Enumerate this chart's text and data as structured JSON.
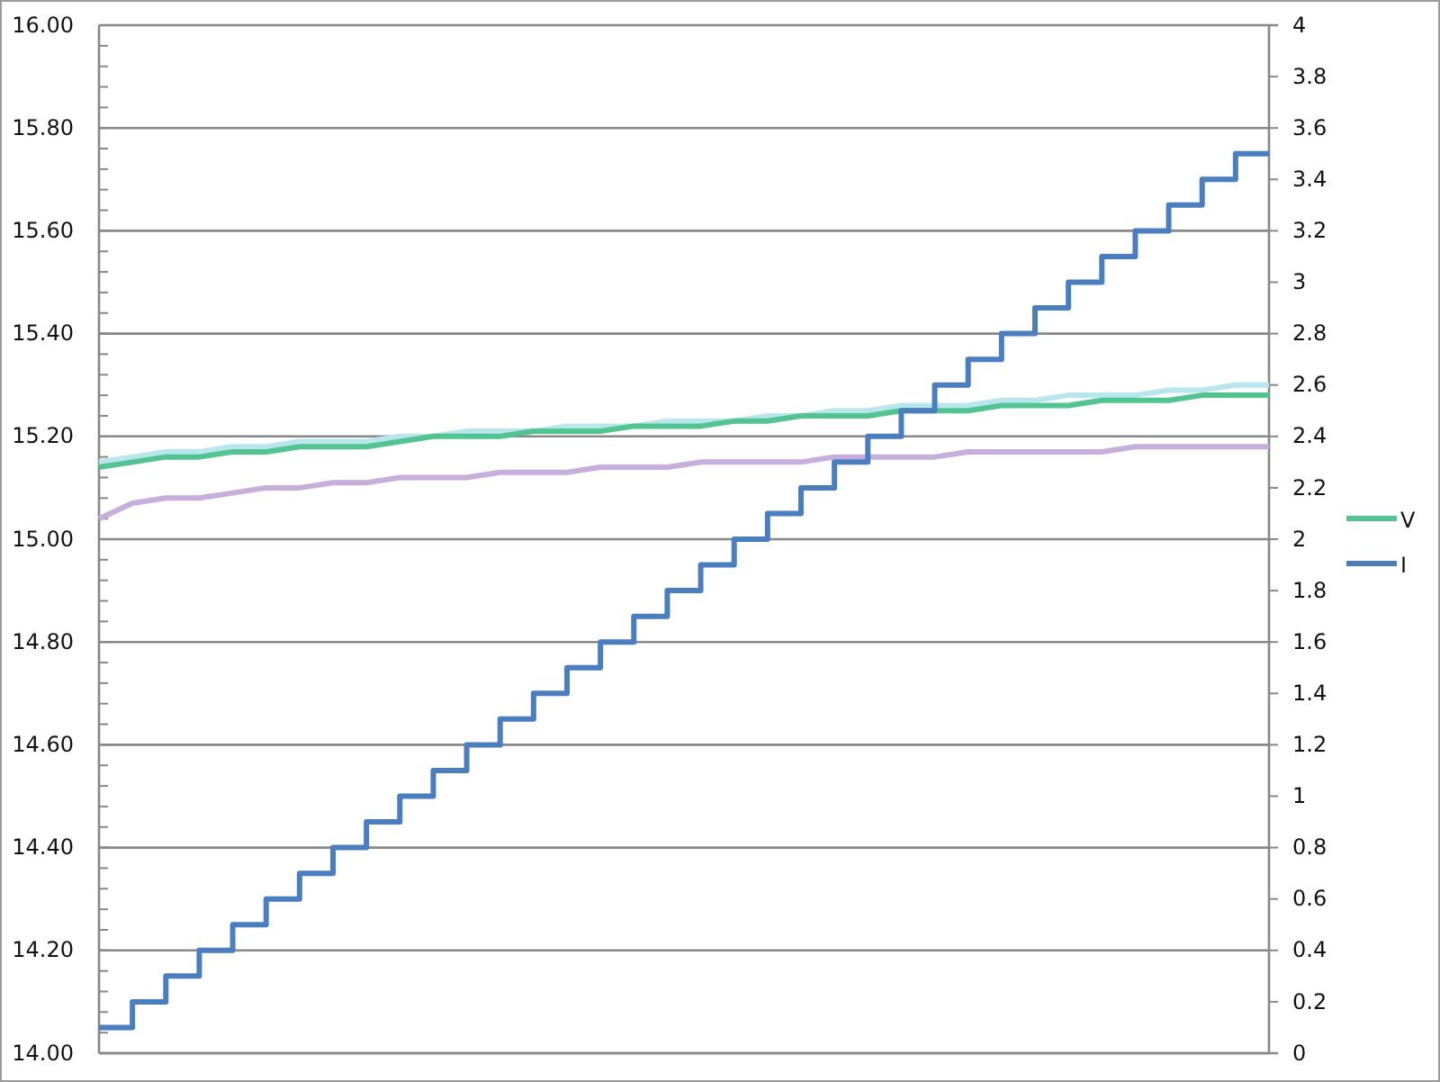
{
  "chart_data": {
    "type": "line",
    "categories": [
      null,
      null,
      null,
      null,
      null,
      null,
      null,
      null,
      null,
      null,
      null,
      null,
      null,
      null,
      null,
      null,
      null,
      null,
      null,
      null,
      null,
      null,
      null,
      null,
      null,
      null,
      null,
      null,
      null,
      null,
      null,
      null,
      null,
      null,
      null,
      null
    ],
    "series": [
      {
        "color": "#b8e6ef",
        "values": [
          15.15,
          15.16,
          15.17,
          15.17,
          15.18,
          15.18,
          15.19,
          15.19,
          15.19,
          15.2,
          15.2,
          15.21,
          15.21,
          15.21,
          15.22,
          15.22,
          15.22,
          15.23,
          15.23,
          15.23,
          15.24,
          15.24,
          15.25,
          15.25,
          15.26,
          15.26,
          15.26,
          15.27,
          15.27,
          15.28,
          15.28,
          15.28,
          15.29,
          15.29,
          15.3,
          15.3
        ]
      },
      {
        "color": "#c6aedd",
        "values": [
          15.04,
          15.07,
          15.08,
          15.08,
          15.09,
          15.1,
          15.1,
          15.11,
          15.11,
          15.12,
          15.12,
          15.12,
          15.13,
          15.13,
          15.13,
          15.14,
          15.14,
          15.14,
          15.15,
          15.15,
          15.15,
          15.15,
          15.16,
          15.16,
          15.16,
          15.16,
          15.17,
          15.17,
          15.17,
          15.17,
          15.17,
          15.18,
          15.18,
          15.18,
          15.18,
          15.18
        ]
      },
      {
        "name": "V",
        "color": "#52c490",
        "values": [
          15.14,
          15.15,
          15.16,
          15.16,
          15.17,
          15.17,
          15.18,
          15.18,
          15.18,
          15.19,
          15.2,
          15.2,
          15.2,
          15.21,
          15.21,
          15.21,
          15.22,
          15.22,
          15.22,
          15.23,
          15.23,
          15.24,
          15.24,
          15.24,
          15.25,
          15.25,
          15.25,
          15.26,
          15.26,
          15.26,
          15.27,
          15.27,
          15.27,
          15.28,
          15.28,
          15.28
        ]
      },
      {
        "name": "I",
        "type": "step",
        "axis": "y2",
        "color": "#4a7ebf",
        "values": [
          0.1,
          0.2,
          0.3,
          0.4,
          0.5,
          0.6,
          0.7,
          0.8,
          0.9,
          1.0,
          1.1,
          1.2,
          1.3,
          1.4,
          1.5,
          1.6,
          1.7,
          1.8,
          1.9,
          2.0,
          2.1,
          2.2,
          2.3,
          2.4,
          2.5,
          2.6,
          2.7,
          2.8,
          2.9,
          3.0,
          3.1,
          3.2,
          3.3,
          3.4,
          3.5,
          3.5
        ]
      }
    ],
    "ylim": [
      14,
      16
    ],
    "yticks": [
      {
        "value": 14,
        "label": "14.00"
      },
      {
        "value": 14.04,
        "label": null
      },
      {
        "value": 14.08,
        "label": null
      },
      {
        "value": 14.12,
        "label": null
      },
      {
        "value": 14.16,
        "label": null
      },
      {
        "value": 14.2,
        "label": "14.20"
      },
      {
        "value": 14.24,
        "label": null
      },
      {
        "value": 14.28,
        "label": null
      },
      {
        "value": 14.32,
        "label": null
      },
      {
        "value": 14.36,
        "label": null
      },
      {
        "value": 14.4,
        "label": "14.40"
      },
      {
        "value": 14.44,
        "label": null
      },
      {
        "value": 14.48,
        "label": null
      },
      {
        "value": 14.52,
        "label": null
      },
      {
        "value": 14.56,
        "label": null
      },
      {
        "value": 14.6,
        "label": "14.60"
      },
      {
        "value": 14.64,
        "label": null
      },
      {
        "value": 14.68,
        "label": null
      },
      {
        "value": 14.72,
        "label": null
      },
      {
        "value": 14.76,
        "label": null
      },
      {
        "value": 14.8,
        "label": "14.80"
      },
      {
        "value": 14.84,
        "label": null
      },
      {
        "value": 14.88,
        "label": null
      },
      {
        "value": 14.92,
        "label": null
      },
      {
        "value": 14.96,
        "label": null
      },
      {
        "value": 15,
        "label": "15.00"
      },
      {
        "value": 15.04,
        "label": null
      },
      {
        "value": 15.08,
        "label": null
      },
      {
        "value": 15.12,
        "label": null
      },
      {
        "value": 15.16,
        "label": null
      },
      {
        "value": 15.2,
        "label": "15.20"
      },
      {
        "value": 15.24,
        "label": null
      },
      {
        "value": 15.28,
        "label": null
      },
      {
        "value": 15.32,
        "label": null
      },
      {
        "value": 15.36,
        "label": null
      },
      {
        "value": 15.4,
        "label": "15.40"
      },
      {
        "value": 15.44,
        "label": null
      },
      {
        "value": 15.48,
        "label": null
      },
      {
        "value": 15.52,
        "label": null
      },
      {
        "value": 15.56,
        "label": null
      },
      {
        "value": 15.6,
        "label": "15.60"
      },
      {
        "value": 15.64,
        "label": null
      },
      {
        "value": 15.68,
        "label": null
      },
      {
        "value": 15.72,
        "label": null
      },
      {
        "value": 15.76,
        "label": null
      },
      {
        "value": 15.8,
        "label": "15.80"
      },
      {
        "value": 15.84,
        "label": null
      },
      {
        "value": 15.88,
        "label": null
      },
      {
        "value": 15.92,
        "label": null
      },
      {
        "value": 15.96,
        "label": null
      },
      {
        "value": 16,
        "label": "16.00"
      }
    ],
    "y2lim": [
      0,
      4
    ],
    "y2ticks": [
      0,
      0.2,
      0.4,
      0.6,
      0.8,
      1,
      1.2,
      1.4,
      1.6,
      1.8,
      2,
      2.2,
      2.4,
      2.6,
      2.8,
      3,
      3.2,
      3.4,
      3.6,
      3.8,
      4
    ],
    "grid": "y",
    "legend": "right",
    "marker": "none",
    "line_style": "solid"
  }
}
